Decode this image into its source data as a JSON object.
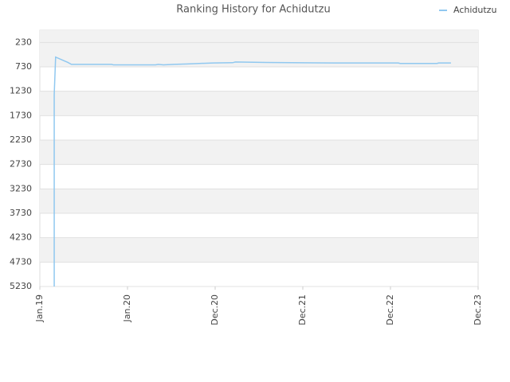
{
  "chart_data": {
    "type": "line",
    "title": "Ranking History for Achidutzu",
    "x": [
      0.164,
      0.164,
      0.18,
      0.27,
      0.32,
      0.36,
      0.82,
      0.84,
      1.32,
      1.35,
      1.41,
      1.53,
      1.68,
      1.82,
      1.98,
      2.2,
      2.23,
      2.59,
      3.35,
      4.09,
      4.11,
      4.53,
      4.55,
      4.69
    ],
    "series": [
      {
        "name": "Achidutzu",
        "color": "#90c8f0",
        "values": [
          5230,
          1300,
          530,
          600,
          640,
          680,
          680,
          690,
          690,
          680,
          690,
          680,
          670,
          660,
          650,
          645,
          630,
          640,
          650,
          650,
          660,
          660,
          650,
          650
        ]
      }
    ],
    "xlim": [
      0,
      5
    ],
    "xticks": [
      {
        "value": 0,
        "label": "Jan.19"
      },
      {
        "value": 1,
        "label": "Jan.20"
      },
      {
        "value": 2,
        "label": "Dec.20"
      },
      {
        "value": 3,
        "label": "Dec.21"
      },
      {
        "value": 4,
        "label": "Dec.22"
      },
      {
        "value": 5,
        "label": "Dec.23"
      }
    ],
    "ylim": [
      5230,
      -20
    ],
    "yticks": [
      230,
      730,
      1230,
      1730,
      2230,
      2730,
      3230,
      3730,
      4230,
      4730,
      5230
    ],
    "grid": true,
    "legend": "top-right"
  }
}
